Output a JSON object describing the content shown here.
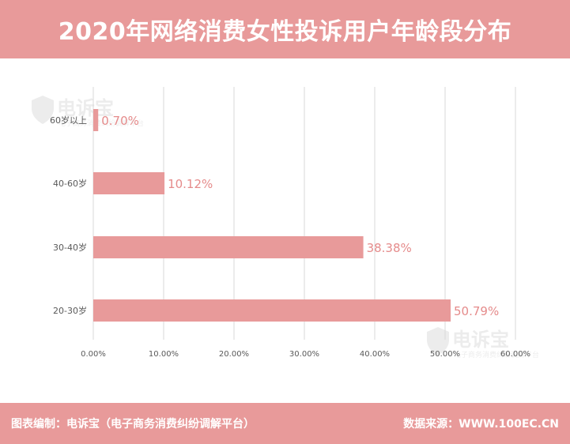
{
  "header": {
    "title": "2020年网络消费女性投诉用户年龄段分布"
  },
  "footer": {
    "credit": "图表编制：电诉宝（电子商务消费纠纷调解平台）",
    "source": "数据来源：WWW.100EC.CN"
  },
  "watermark": {
    "brand": "电诉宝",
    "tagline": "电子商务消费纠纷调解平台"
  },
  "colors": {
    "accent": "#e89a9a",
    "bar": "#e89a9a",
    "label": "#e58b8b",
    "grid": "#d9d9d9",
    "tick": "#595959"
  },
  "chart_data": {
    "type": "bar",
    "orientation": "horizontal",
    "categories": [
      "60岁以上",
      "40-60岁",
      "30-40岁",
      "20-30岁"
    ],
    "values": [
      0.7,
      10.12,
      38.38,
      50.79
    ],
    "data_labels": [
      "0.70%",
      "10.12%",
      "38.38%",
      "50.79%"
    ],
    "xlim": [
      0,
      60
    ],
    "x_ticks": [
      0,
      10,
      20,
      30,
      40,
      50,
      60
    ],
    "x_tick_labels": [
      "0.00%",
      "10.00%",
      "20.00%",
      "30.00%",
      "40.00%",
      "50.00%",
      "60.00%"
    ],
    "grid": true,
    "legend": "none"
  }
}
